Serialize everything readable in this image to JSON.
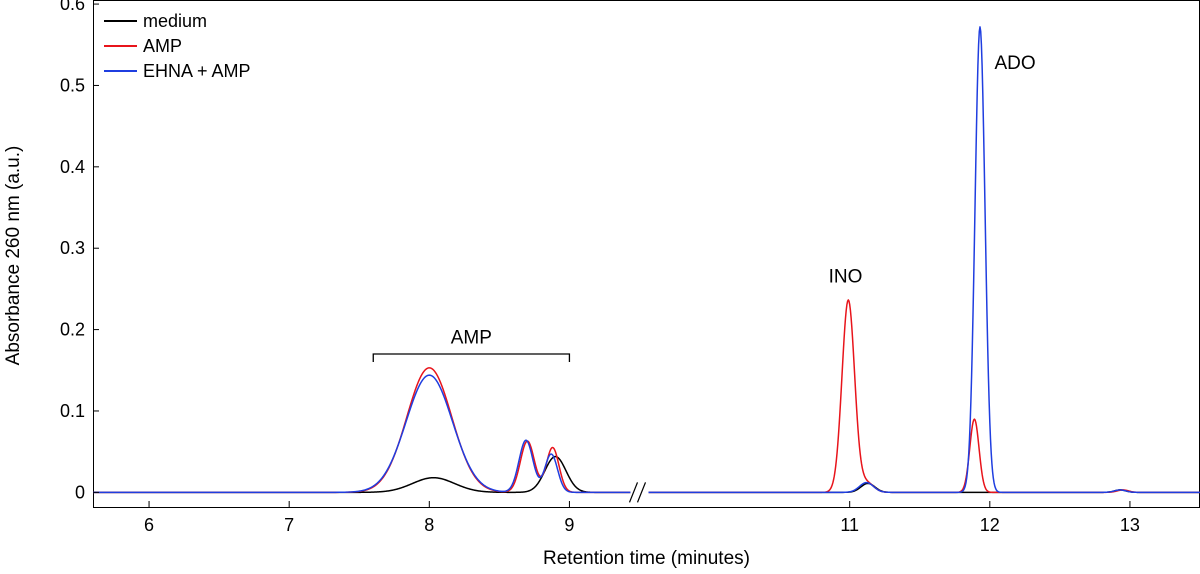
{
  "chart_data": {
    "type": "line",
    "title": "",
    "xlabel": "Retention time (minutes)",
    "ylabel": "Absorbance 260 nm (a.u.)",
    "xlim": [
      5.6,
      13.5
    ],
    "ylim": [
      -0.018,
      0.605
    ],
    "x_ticks": [
      6,
      7,
      8,
      9,
      11,
      12,
      13
    ],
    "y_ticks": [
      0,
      0.1,
      0.2,
      0.3,
      0.4,
      0.5,
      0.6
    ],
    "y_tick_labels": [
      "0",
      "0.1",
      "0.2",
      "0.3",
      "0.4",
      "0.5",
      "0.6"
    ],
    "axis_break": {
      "x": 9.5,
      "marker": "//"
    },
    "legend": {
      "position": "top-left",
      "entries": [
        {
          "name": "medium",
          "color": "#000000"
        },
        {
          "name": "AMP",
          "color": "#e8141b"
        },
        {
          "name": "EHNA + AMP",
          "color": "#1f3ee0"
        }
      ]
    },
    "annotations": [
      {
        "text": "AMP",
        "x": 8.3,
        "y": 0.183,
        "bracket": [
          7.6,
          9.0
        ],
        "bracket_y": 0.17
      },
      {
        "text": "INO",
        "x": 10.97,
        "y": 0.258
      },
      {
        "text": "ADO",
        "x": 12.18,
        "y": 0.52
      }
    ],
    "series": [
      {
        "name": "medium",
        "color": "#000000",
        "baseline": 0.0,
        "peaks": [
          {
            "center": 8.03,
            "height": 0.018,
            "width": 0.15
          },
          {
            "center": 8.9,
            "height": 0.044,
            "width": 0.075
          },
          {
            "center": 11.13,
            "height": 0.011,
            "width": 0.05
          },
          {
            "center": 12.93,
            "height": 0.003,
            "width": 0.04
          }
        ]
      },
      {
        "name": "AMP",
        "color": "#e8141b",
        "baseline": 0.0,
        "peaks": [
          {
            "center": 8.0,
            "height": 0.153,
            "width": 0.16
          },
          {
            "center": 8.7,
            "height": 0.063,
            "width": 0.05
          },
          {
            "center": 8.88,
            "height": 0.055,
            "width": 0.045
          },
          {
            "center": 10.99,
            "height": 0.236,
            "width": 0.045
          },
          {
            "center": 11.12,
            "height": 0.012,
            "width": 0.05
          },
          {
            "center": 11.89,
            "height": 0.09,
            "width": 0.033
          },
          {
            "center": 12.95,
            "height": 0.003,
            "width": 0.04
          }
        ]
      },
      {
        "name": "EHNA + AMP",
        "color": "#1f3ee0",
        "baseline": 0.0,
        "peaks": [
          {
            "center": 8.0,
            "height": 0.144,
            "width": 0.165
          },
          {
            "center": 8.69,
            "height": 0.064,
            "width": 0.05
          },
          {
            "center": 8.87,
            "height": 0.047,
            "width": 0.045
          },
          {
            "center": 11.12,
            "height": 0.012,
            "width": 0.05
          },
          {
            "center": 11.93,
            "height": 0.572,
            "width": 0.036
          },
          {
            "center": 12.93,
            "height": 0.003,
            "width": 0.04
          }
        ]
      }
    ]
  }
}
